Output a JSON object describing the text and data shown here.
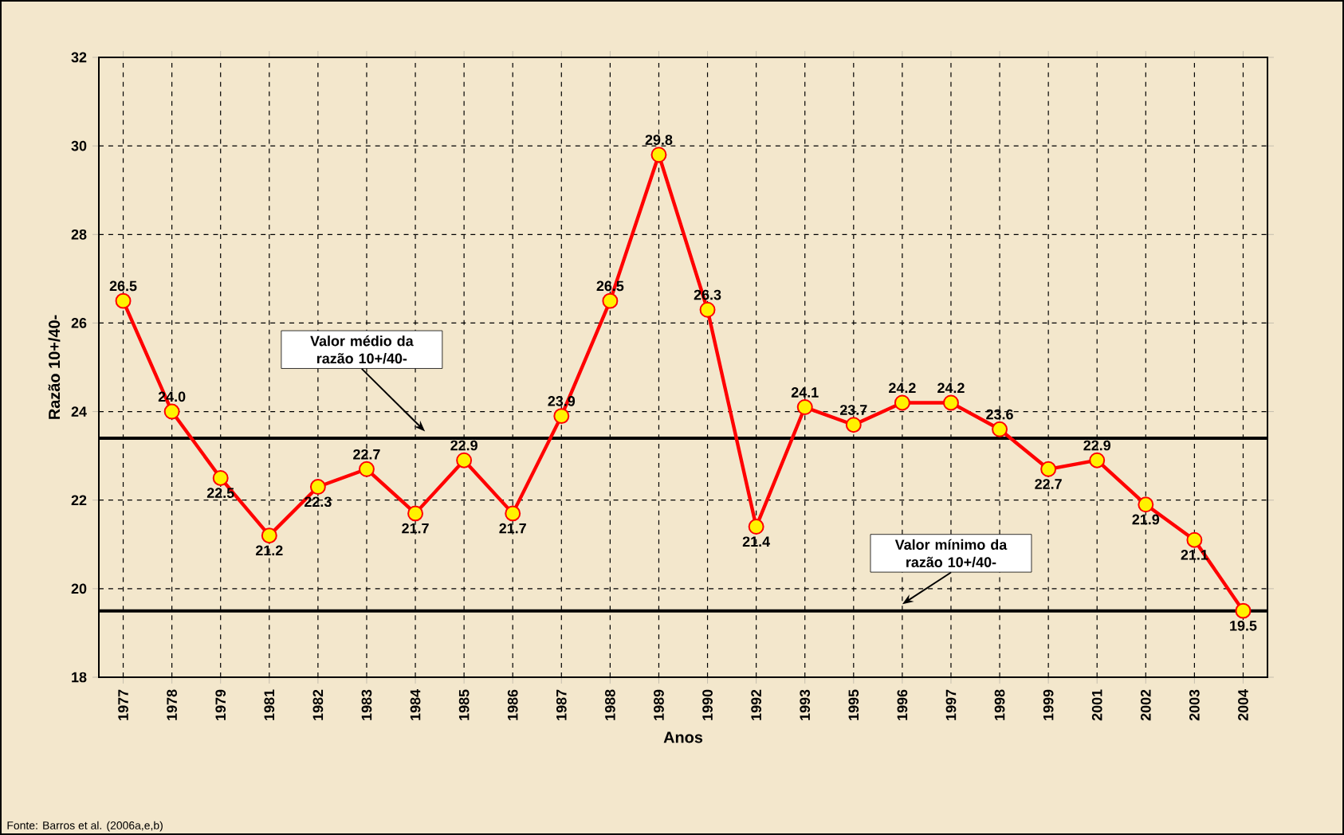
{
  "chart_data": {
    "type": "line",
    "xlabel": "Anos",
    "ylabel": "Razão 10+/40-",
    "categories": [
      "1977",
      "1978",
      "1979",
      "1981",
      "1982",
      "1983",
      "1984",
      "1985",
      "1986",
      "1987",
      "1988",
      "1989",
      "1990",
      "1992",
      "1993",
      "1995",
      "1996",
      "1997",
      "1998",
      "1999",
      "2001",
      "2002",
      "2003",
      "2004"
    ],
    "series": [
      {
        "color": "#ff0000",
        "values": [
          26.5,
          24.0,
          22.5,
          21.2,
          22.3,
          22.7,
          21.7,
          22.9,
          21.7,
          23.9,
          26.5,
          29.8,
          26.3,
          21.4,
          24.1,
          23.7,
          24.2,
          24.2,
          23.6,
          22.7,
          22.9,
          21.9,
          21.1,
          19.5
        ],
        "value_labels": [
          "26.5",
          "24.0",
          "22.5",
          "21.2",
          "22.3",
          "22.7",
          "21.7",
          "22.9",
          "21.7",
          "23.9",
          "26.5",
          "29.8",
          "26.3",
          "21.4",
          "24.1",
          "23.7",
          "24.2",
          "24.2",
          "23.6",
          "22.7",
          "22.9",
          "21.9",
          "21.1",
          "19.5"
        ]
      }
    ],
    "ylim": [
      18,
      32
    ],
    "yticks": [
      18,
      20,
      22,
      24,
      26,
      28,
      30,
      32
    ],
    "ref_lines": [
      {
        "axis": "y",
        "value": 23.4,
        "label": "Valor médio da razão 10+/40-",
        "color": "#000000"
      },
      {
        "axis": "y",
        "value": 19.5,
        "label": "Valor mínimo da razão 10+/40-",
        "color": "#000000"
      }
    ],
    "grid": true,
    "marker": "circle",
    "line_style": "solid",
    "annotations": [
      "Fonte: Barros et al. (2006a,e,b)"
    ]
  }
}
